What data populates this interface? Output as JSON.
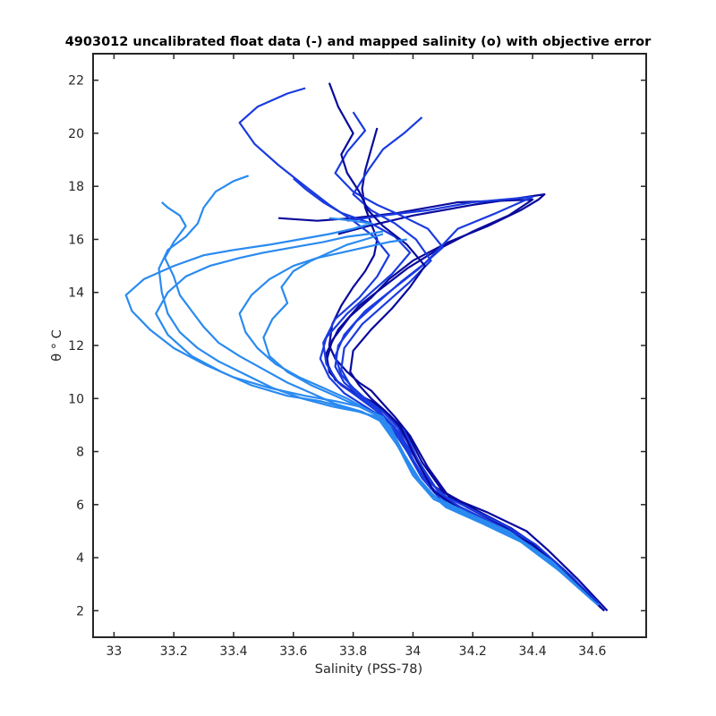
{
  "chart_data": {
    "type": "line",
    "title": "4903012 uncalibrated float data (-) and mapped salinity (o) with objective error",
    "xlabel": "Salinity (PSS-78)",
    "ylabel": "θ ° C",
    "xlim": [
      32.93,
      34.78
    ],
    "ylim": [
      1.0,
      23.0
    ],
    "xticks": [
      "33",
      "33.2",
      "33.4",
      "33.6",
      "33.8",
      "34",
      "34.2",
      "34.4",
      "34.6"
    ],
    "yticks": [
      "2",
      "4",
      "6",
      "8",
      "10",
      "12",
      "14",
      "16",
      "18",
      "20",
      "22"
    ],
    "grid": false,
    "legend": "none",
    "colors": {
      "profile_dark": "#0a0a9c",
      "profile_mid": "#1a3be0",
      "profile_light": "#2a8af0",
      "axis": "#262626"
    },
    "series": [
      {
        "x": [
          34.65,
          34.55,
          34.45,
          34.38,
          34.25,
          34.12,
          34.05,
          33.99,
          33.94,
          33.9,
          33.86,
          33.82,
          33.78,
          33.74,
          33.72,
          33.73,
          33.76,
          33.8,
          33.84,
          33.87,
          33.88,
          33.86,
          33.84,
          33.83,
          33.84,
          33.86,
          33.88
        ],
        "y": [
          2.0,
          3.2,
          4.3,
          5.0,
          5.7,
          6.3,
          7.4,
          8.6,
          9.3,
          9.8,
          10.3,
          10.6,
          11.0,
          11.5,
          12.0,
          12.8,
          13.5,
          14.2,
          14.8,
          15.4,
          16.0,
          16.6,
          17.2,
          17.9,
          18.6,
          19.4,
          20.2
        ]
      },
      {
        "x": [
          34.63,
          34.52,
          34.42,
          34.33,
          34.21,
          34.1,
          34.03,
          33.98,
          33.92,
          33.86,
          33.79,
          33.74,
          33.71,
          33.73,
          33.79,
          33.86,
          33.92,
          34.0,
          34.12,
          34.25,
          34.36,
          34.42,
          34.44,
          34.2,
          34.0,
          33.85,
          33.75
        ],
        "y": [
          2.1,
          3.3,
          4.4,
          5.1,
          5.8,
          6.5,
          7.6,
          8.7,
          9.4,
          9.9,
          10.3,
          10.7,
          11.4,
          12.2,
          13.1,
          13.8,
          14.5,
          15.2,
          15.9,
          16.5,
          17.1,
          17.5,
          17.7,
          17.3,
          16.9,
          16.5,
          16.2
        ]
      },
      {
        "x": [
          34.62,
          34.5,
          34.4,
          34.3,
          34.18,
          34.07,
          34.01,
          33.96,
          33.9,
          33.83,
          33.76,
          33.72,
          33.71,
          33.75,
          33.82,
          33.9,
          33.98,
          34.08,
          34.2,
          34.32,
          34.4,
          34.15,
          33.95,
          33.8,
          33.68,
          33.55
        ],
        "y": [
          2.2,
          3.5,
          4.5,
          5.2,
          5.9,
          6.7,
          7.8,
          8.8,
          9.5,
          10.0,
          10.5,
          11.0,
          11.7,
          12.6,
          13.5,
          14.2,
          14.9,
          15.6,
          16.3,
          16.9,
          17.5,
          17.4,
          17.0,
          16.8,
          16.7,
          16.8
        ]
      },
      {
        "x": [
          34.64,
          34.53,
          34.41,
          34.31,
          34.2,
          34.09,
          34.02,
          33.97,
          33.91,
          33.85,
          33.8,
          33.76,
          33.74,
          33.77,
          33.84,
          33.93,
          34.02,
          34.1,
          34.05,
          33.96,
          33.88,
          33.8,
          33.74,
          33.78,
          33.84,
          33.8
        ],
        "y": [
          2.0,
          3.3,
          4.5,
          5.2,
          5.8,
          6.4,
          7.6,
          8.8,
          9.4,
          9.9,
          10.4,
          10.9,
          11.6,
          12.4,
          13.3,
          14.1,
          14.9,
          15.7,
          16.4,
          16.9,
          17.3,
          17.8,
          18.5,
          19.3,
          20.1,
          20.8
        ]
      },
      {
        "x": [
          34.62,
          34.5,
          34.37,
          34.25,
          34.14,
          34.06,
          34.0,
          33.94,
          33.88,
          33.82,
          33.77,
          33.74,
          33.75,
          33.81,
          33.89,
          33.96,
          34.04,
          34.1,
          34.15,
          34.28,
          34.4,
          34.2,
          34.05,
          33.9,
          33.78
        ],
        "y": [
          2.3,
          3.6,
          4.7,
          5.4,
          6.0,
          6.8,
          7.9,
          8.9,
          9.6,
          10.1,
          10.6,
          11.2,
          12.0,
          12.9,
          13.7,
          14.4,
          15.1,
          15.8,
          16.4,
          17.0,
          17.6,
          17.4,
          17.1,
          16.9,
          16.7
        ]
      },
      {
        "x": [
          34.63,
          34.51,
          34.39,
          34.27,
          34.16,
          34.06,
          34.0,
          33.95,
          33.9,
          33.84,
          33.79,
          33.76,
          33.77,
          33.83,
          33.91,
          33.99,
          34.06,
          34.01,
          33.94,
          33.86,
          33.8,
          33.85,
          33.9,
          33.97,
          34.03
        ],
        "y": [
          2.1,
          3.4,
          4.6,
          5.3,
          5.9,
          6.6,
          7.7,
          8.9,
          9.5,
          10.0,
          10.5,
          11.1,
          11.9,
          12.8,
          13.6,
          14.4,
          15.2,
          16.0,
          16.6,
          17.1,
          17.7,
          18.6,
          19.4,
          20.0,
          20.6
        ]
      },
      {
        "x": [
          34.6,
          34.48,
          34.35,
          34.22,
          34.1,
          34.03,
          33.98,
          33.91,
          33.84,
          33.77,
          33.72,
          33.69,
          33.71,
          33.78,
          33.86,
          33.93,
          33.99,
          33.94,
          33.86,
          33.76,
          33.7,
          33.64,
          33.6
        ],
        "y": [
          2.4,
          3.7,
          4.8,
          5.5,
          6.1,
          7.0,
          8.0,
          9.2,
          9.7,
          10.2,
          10.8,
          11.5,
          12.3,
          13.2,
          14.0,
          14.7,
          15.5,
          16.1,
          16.6,
          17.0,
          17.4,
          17.9,
          18.3
        ]
      },
      {
        "x": [
          34.61,
          34.49,
          34.36,
          34.24,
          34.12,
          34.04,
          33.99,
          33.93,
          33.87,
          33.81,
          33.75,
          33.71,
          33.7,
          33.74,
          33.82,
          33.88,
          33.92,
          33.87,
          33.8,
          33.72,
          33.64,
          33.55,
          33.47,
          33.42,
          33.48,
          33.58,
          33.64
        ],
        "y": [
          2.3,
          3.6,
          4.7,
          5.4,
          6.0,
          6.9,
          7.9,
          9.0,
          9.6,
          10.1,
          10.6,
          11.3,
          12.1,
          13.0,
          13.8,
          14.6,
          15.4,
          16.1,
          16.7,
          17.3,
          18.0,
          18.8,
          19.6,
          20.4,
          21.0,
          21.5,
          21.7
        ]
      },
      {
        "x": [
          34.64,
          34.52,
          34.4,
          34.28,
          34.16,
          34.07,
          34.01,
          33.96,
          33.91,
          33.86,
          33.82,
          33.79,
          33.8,
          33.86,
          33.93,
          33.99,
          34.04,
          33.98,
          33.9,
          33.85,
          33.82,
          33.78,
          33.76,
          33.8,
          33.75,
          33.72
        ],
        "y": [
          2.0,
          3.3,
          4.5,
          5.2,
          5.8,
          6.5,
          7.7,
          8.9,
          9.5,
          10.0,
          10.5,
          11.0,
          11.8,
          12.6,
          13.4,
          14.2,
          15.0,
          15.8,
          16.5,
          17.1,
          17.8,
          18.5,
          19.2,
          20.0,
          21.0,
          21.9
        ]
      },
      {
        "x": [
          34.6,
          34.47,
          34.33,
          34.19,
          34.08,
          34.01,
          33.96,
          33.9,
          33.82,
          33.74,
          33.64,
          33.52,
          33.4,
          33.3,
          33.2,
          33.12,
          33.06,
          33.04,
          33.1,
          33.2,
          33.3,
          33.4,
          33.52,
          33.62,
          33.72,
          33.8,
          33.86,
          33.8,
          33.72
        ],
        "y": [
          2.4,
          3.8,
          4.9,
          5.6,
          6.2,
          7.1,
          8.1,
          9.3,
          9.7,
          9.9,
          10.1,
          10.4,
          10.8,
          11.3,
          11.9,
          12.6,
          13.3,
          13.9,
          14.5,
          15.0,
          15.4,
          15.6,
          15.8,
          16.0,
          16.2,
          16.4,
          16.6,
          16.7,
          16.8
        ]
      },
      {
        "x": [
          34.59,
          34.46,
          34.32,
          34.18,
          34.07,
          34.0,
          33.95,
          33.88,
          33.79,
          33.69,
          33.58,
          33.46,
          33.36,
          33.26,
          33.18,
          33.14,
          33.18,
          33.24,
          33.32,
          33.42,
          33.5,
          33.6,
          33.7,
          33.78,
          33.85,
          33.9
        ],
        "y": [
          2.5,
          3.9,
          5.0,
          5.7,
          6.3,
          7.2,
          8.2,
          9.3,
          9.6,
          9.9,
          10.1,
          10.5,
          11.0,
          11.6,
          12.4,
          13.2,
          14.0,
          14.6,
          15.0,
          15.3,
          15.5,
          15.7,
          15.9,
          16.1,
          16.2,
          16.3
        ]
      },
      {
        "x": [
          34.6,
          34.47,
          34.34,
          34.2,
          34.09,
          34.01,
          33.96,
          33.9,
          33.82,
          33.73,
          33.63,
          33.53,
          33.44,
          33.35,
          33.28,
          33.22,
          33.18,
          33.16,
          33.15,
          33.18,
          33.24,
          33.28,
          33.3,
          33.34,
          33.4,
          33.45
        ],
        "y": [
          2.4,
          3.7,
          4.8,
          5.5,
          6.1,
          7.0,
          8.1,
          9.2,
          9.5,
          9.7,
          10.0,
          10.4,
          10.9,
          11.4,
          11.9,
          12.5,
          13.2,
          14.0,
          14.9,
          15.6,
          16.1,
          16.6,
          17.2,
          17.8,
          18.2,
          18.4
        ]
      },
      {
        "x": [
          34.61,
          34.48,
          34.35,
          34.22,
          34.1,
          34.02,
          33.96,
          33.9,
          33.83,
          33.74,
          33.66,
          33.58,
          33.5,
          33.42,
          33.35,
          33.3,
          33.26,
          33.22,
          33.2,
          33.17,
          33.2,
          33.24,
          33.22,
          33.18,
          33.16
        ],
        "y": [
          2.3,
          3.6,
          4.7,
          5.4,
          6.0,
          6.9,
          8.0,
          9.1,
          9.5,
          9.8,
          10.2,
          10.6,
          11.1,
          11.6,
          12.1,
          12.7,
          13.3,
          13.9,
          14.6,
          15.3,
          15.9,
          16.5,
          16.9,
          17.2,
          17.4
        ]
      },
      {
        "x": [
          34.62,
          34.49,
          34.36,
          34.23,
          34.11,
          34.03,
          33.97,
          33.92,
          33.86,
          33.78,
          33.7,
          33.62,
          33.54,
          33.48,
          33.44,
          33.42,
          33.46,
          33.52,
          33.6,
          33.68,
          33.76,
          33.84,
          33.92,
          33.98
        ],
        "y": [
          2.2,
          3.5,
          4.6,
          5.3,
          5.9,
          6.8,
          7.9,
          9.0,
          9.5,
          10.0,
          10.4,
          10.8,
          11.3,
          11.9,
          12.5,
          13.2,
          13.9,
          14.5,
          15.0,
          15.3,
          15.5,
          15.7,
          15.9,
          16.0
        ]
      },
      {
        "x": [
          34.6,
          34.47,
          34.33,
          34.19,
          34.07,
          34.0,
          33.95,
          33.89,
          33.82,
          33.74,
          33.66,
          33.58,
          33.52,
          33.5,
          33.53,
          33.58,
          33.56,
          33.6,
          33.66,
          33.72,
          33.78,
          33.84,
          33.9
        ],
        "y": [
          2.4,
          3.8,
          4.9,
          5.6,
          6.2,
          7.1,
          8.2,
          9.3,
          9.7,
          10.1,
          10.5,
          11.0,
          11.6,
          12.3,
          13.0,
          13.6,
          14.2,
          14.8,
          15.2,
          15.5,
          15.8,
          16.0,
          16.2
        ]
      }
    ]
  }
}
